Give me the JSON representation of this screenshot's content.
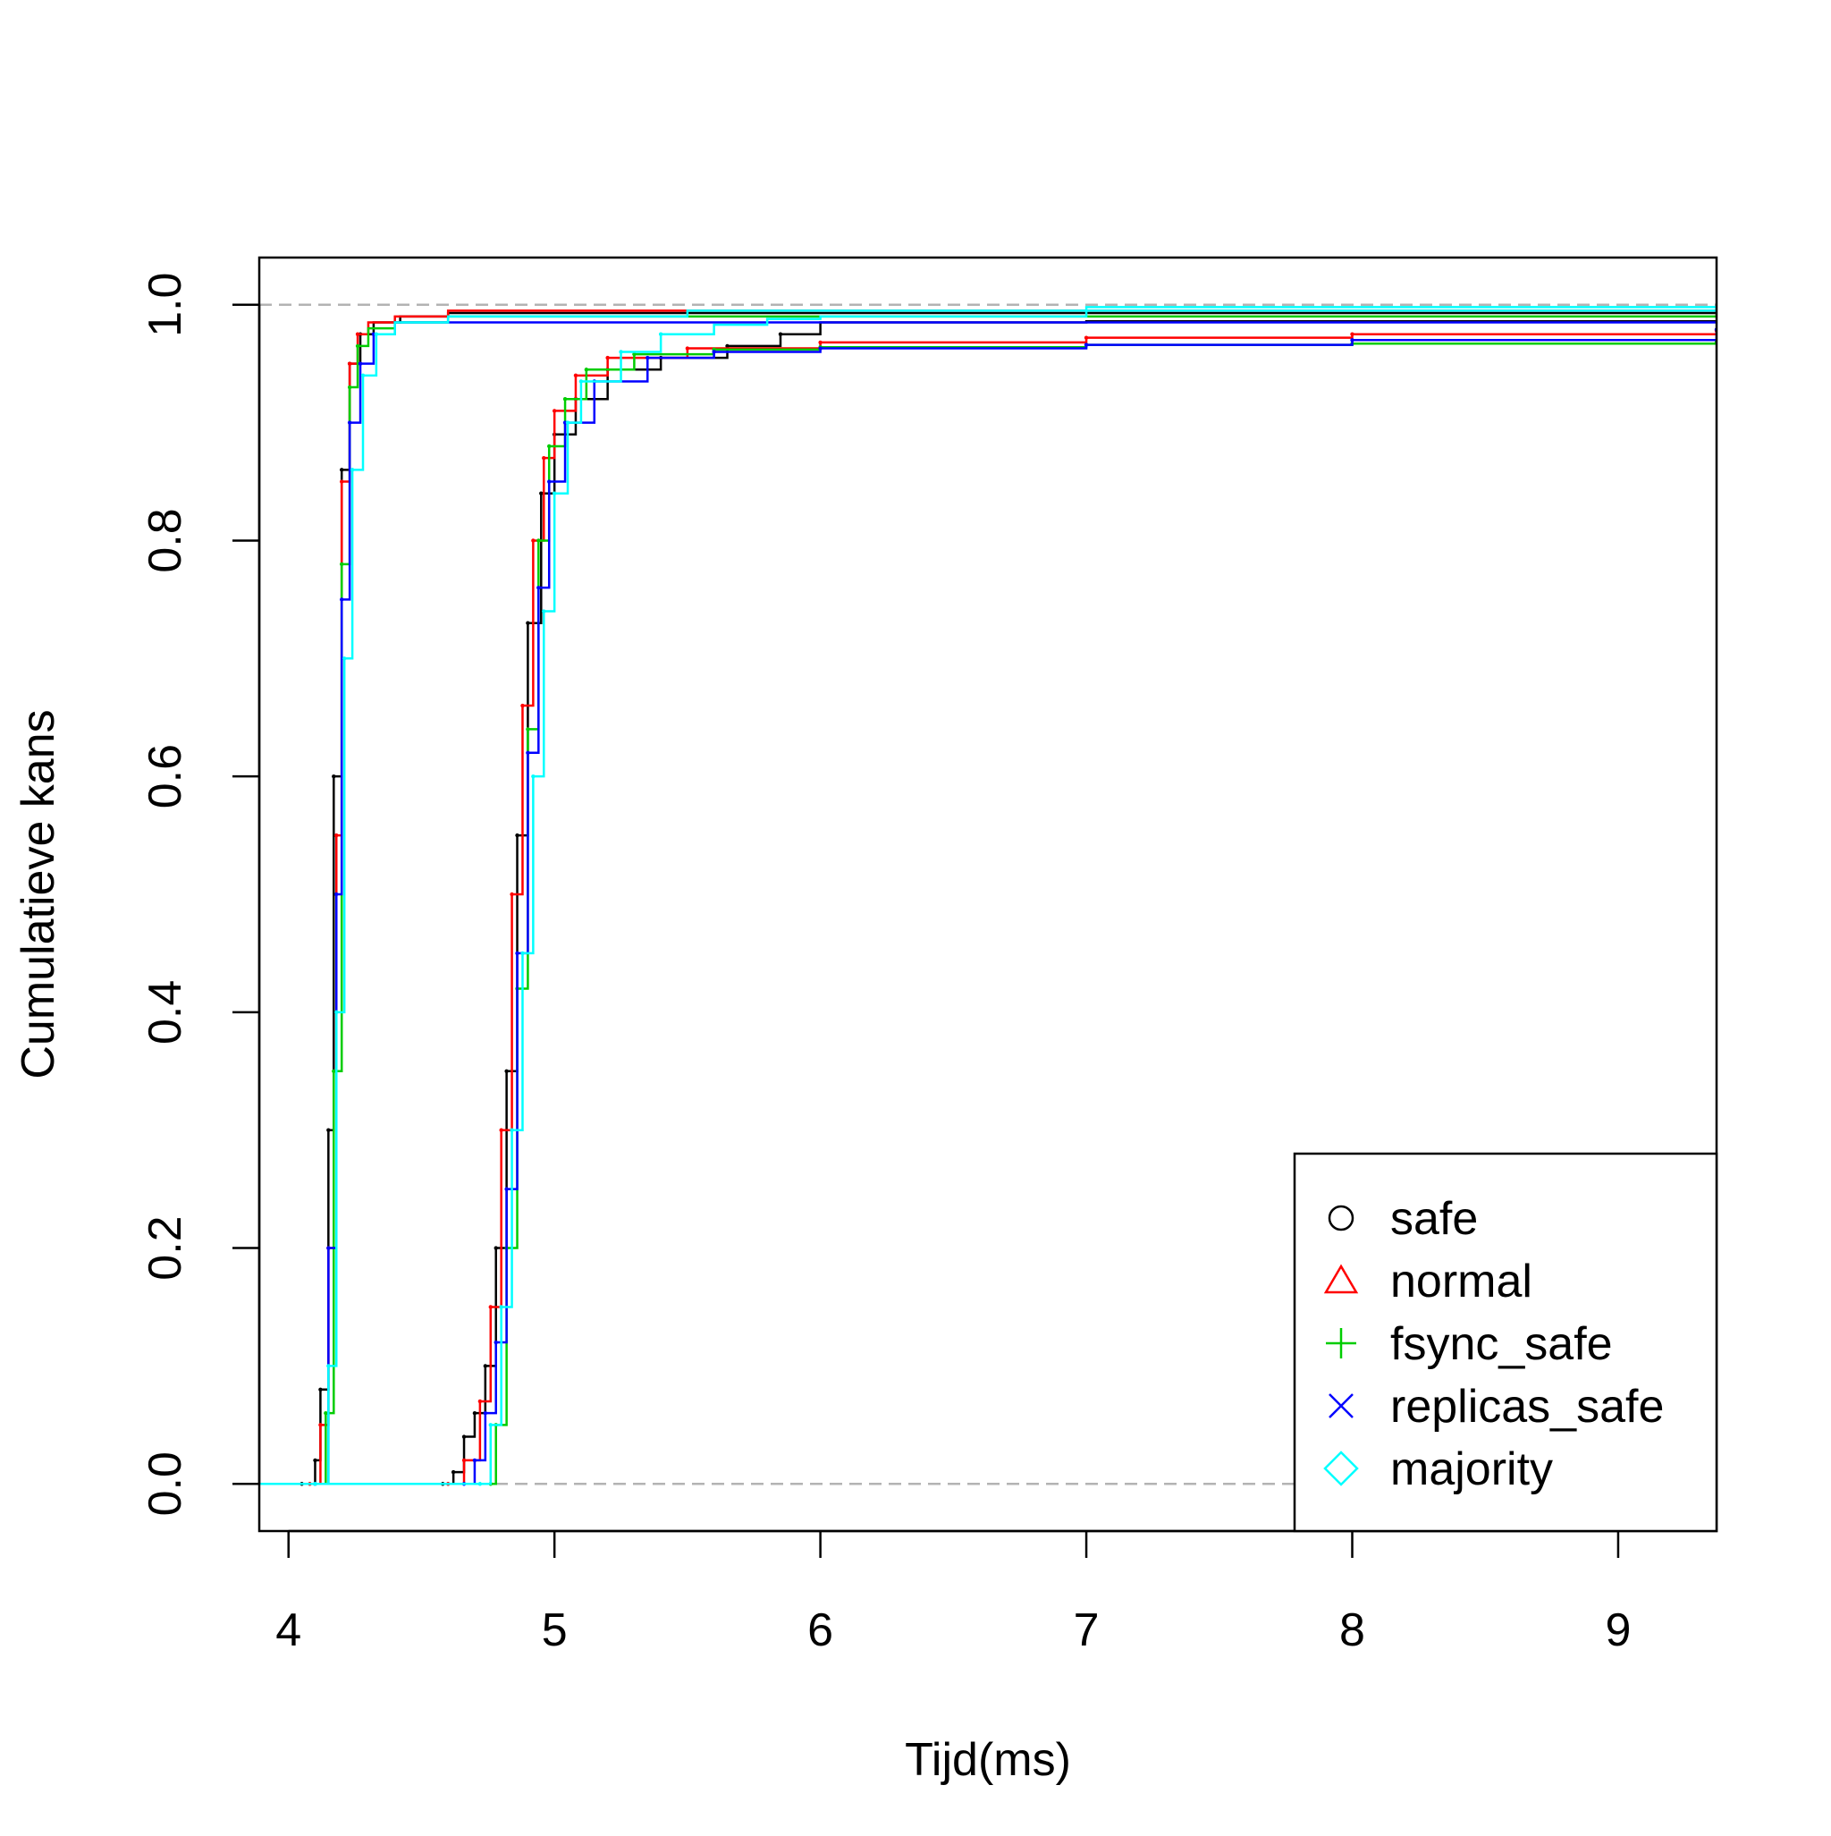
{
  "chart_data": {
    "type": "line",
    "subtype": "empirical-cdf",
    "title": "",
    "xlabel": "Tijd(ms)",
    "ylabel": "Cumulatieve kans",
    "xlim": [
      3.89,
      9.37
    ],
    "ylim": [
      -0.04,
      1.04
    ],
    "x_ticks": [
      4,
      5,
      6,
      7,
      8,
      9
    ],
    "x_tick_labels": [
      "4",
      "5",
      "6",
      "7",
      "8",
      "9"
    ],
    "y_ticks": [
      0.0,
      0.2,
      0.4,
      0.6,
      0.8,
      1.0
    ],
    "y_tick_labels": [
      "0.0",
      "0.2",
      "0.4",
      "0.6",
      "0.8",
      "1.0"
    ],
    "reference_lines": [
      0,
      1
    ],
    "grid": false,
    "legend_position": "bottom-right",
    "series": [
      {
        "name": "safe",
        "color": "#000000",
        "marker": "circle",
        "marker_symbol": "○",
        "group_a": {
          "x": [
            4.05,
            4.1,
            4.12,
            4.15,
            4.17,
            4.2,
            4.23,
            4.27,
            4.32,
            4.42,
            4.6,
            9.37
          ],
          "y": [
            0,
            0.02,
            0.08,
            0.3,
            0.6,
            0.86,
            0.95,
            0.975,
            0.985,
            0.99,
            0.993,
            0.995
          ]
        },
        "group_b": {
          "x": [
            4.58,
            4.62,
            4.66,
            4.7,
            4.74,
            4.78,
            4.82,
            4.86,
            4.9,
            4.95,
            5.0,
            5.08,
            5.2,
            5.4,
            5.65,
            5.85,
            6.0,
            7.0,
            9.37
          ],
          "y": [
            0,
            0.01,
            0.04,
            0.06,
            0.1,
            0.2,
            0.35,
            0.55,
            0.73,
            0.84,
            0.89,
            0.92,
            0.945,
            0.955,
            0.965,
            0.975,
            0.985,
            0.986,
            0.986
          ]
        }
      },
      {
        "name": "normal",
        "color": "#ff0000",
        "marker": "triangle",
        "marker_symbol": "△",
        "group_a": {
          "x": [
            4.08,
            4.12,
            4.15,
            4.18,
            4.2,
            4.23,
            4.26,
            4.3,
            4.4,
            4.6,
            9.37
          ],
          "y": [
            0,
            0.05,
            0.2,
            0.55,
            0.85,
            0.95,
            0.975,
            0.985,
            0.99,
            0.995,
            0.998
          ]
        },
        "group_b": {
          "x": [
            4.6,
            4.66,
            4.72,
            4.76,
            4.8,
            4.84,
            4.88,
            4.92,
            4.96,
            5.0,
            5.08,
            5.2,
            5.5,
            6.0,
            7.0,
            8.0,
            9.37
          ],
          "y": [
            0,
            0.02,
            0.07,
            0.15,
            0.3,
            0.5,
            0.66,
            0.8,
            0.87,
            0.91,
            0.94,
            0.955,
            0.963,
            0.968,
            0.972,
            0.975,
            0.978
          ]
        }
      },
      {
        "name": "fsync_safe",
        "color": "#00cd00",
        "marker": "plus",
        "marker_symbol": "+",
        "group_a": {
          "x": [
            4.1,
            4.14,
            4.17,
            4.2,
            4.23,
            4.26,
            4.3,
            4.4,
            4.6,
            9.37
          ],
          "y": [
            0,
            0.06,
            0.35,
            0.78,
            0.93,
            0.965,
            0.98,
            0.985,
            0.99,
            0.993
          ]
        },
        "group_b": {
          "x": [
            4.76,
            4.78,
            4.82,
            4.86,
            4.9,
            4.94,
            4.98,
            5.04,
            5.12,
            5.3,
            5.6,
            6.0,
            7.0,
            8.0,
            9.37
          ],
          "y": [
            0,
            0.05,
            0.2,
            0.42,
            0.64,
            0.8,
            0.88,
            0.92,
            0.945,
            0.958,
            0.962,
            0.964,
            0.966,
            0.967,
            0.968
          ]
        }
      },
      {
        "name": "replicas_safe",
        "color": "#0000ff",
        "marker": "cross",
        "marker_symbol": "×",
        "group_a": {
          "x": [
            4.1,
            4.15,
            4.18,
            4.2,
            4.23,
            4.27,
            4.32,
            4.4,
            6.0,
            9.37
          ],
          "y": [
            0,
            0.2,
            0.5,
            0.75,
            0.9,
            0.95,
            0.975,
            0.985,
            0.985,
            0.985
          ]
        },
        "group_b": {
          "x": [
            4.66,
            4.7,
            4.74,
            4.78,
            4.82,
            4.86,
            4.9,
            4.94,
            4.98,
            5.04,
            5.15,
            5.35,
            5.6,
            6.0,
            7.0,
            8.0,
            9.37
          ],
          "y": [
            0,
            0.02,
            0.06,
            0.12,
            0.25,
            0.45,
            0.62,
            0.76,
            0.85,
            0.9,
            0.935,
            0.955,
            0.96,
            0.963,
            0.966,
            0.97,
            0.979
          ]
        }
      },
      {
        "name": "majority",
        "color": "#00ffff",
        "marker": "diamond",
        "marker_symbol": "◇",
        "group_a": {
          "x": [
            4.1,
            4.15,
            4.18,
            4.21,
            4.24,
            4.28,
            4.33,
            4.4,
            4.6,
            5.5,
            7.0,
            9.37
          ],
          "y": [
            0,
            0.1,
            0.4,
            0.7,
            0.86,
            0.94,
            0.975,
            0.985,
            0.99,
            0.995,
            0.998,
            0.998
          ]
        },
        "group_b": {
          "x": [
            4.72,
            4.76,
            4.8,
            4.84,
            4.88,
            4.92,
            4.96,
            5.0,
            5.05,
            5.1,
            5.25,
            5.4,
            5.6,
            5.8,
            6.0,
            7.0,
            9.37
          ],
          "y": [
            0,
            0.05,
            0.15,
            0.3,
            0.45,
            0.6,
            0.74,
            0.84,
            0.9,
            0.935,
            0.96,
            0.975,
            0.983,
            0.988,
            0.99,
            0.995,
            0.998
          ]
        }
      }
    ]
  }
}
